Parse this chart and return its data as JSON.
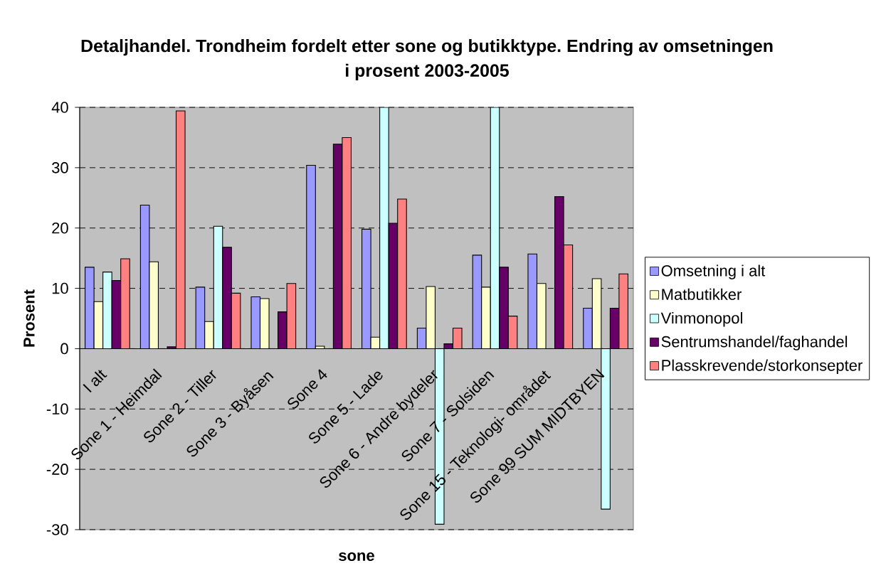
{
  "chart_data": {
    "type": "bar",
    "title": "Detaljhandel. Trondheim fordelt etter sone og butikktype. Endring av omsetningen i prosent 2003-2005",
    "xlabel": "sone",
    "ylabel": "Prosent",
    "categories": [
      "I alt",
      "Sone 1 - Heimdal",
      "Sone 2 - Tiller",
      "Sone 3 - Byåsen",
      "Sone 4",
      "Sone 5 - Lade",
      "Sone 6 - Andre bydeler",
      "Sone 7 - Solsiden",
      "Sone 15 - Teknologi- området",
      "Sone 99 SUM MIDTBYEN"
    ],
    "series": [
      {
        "name": "Omsetning i alt",
        "color": "#9999ff",
        "values": [
          13.5,
          23.8,
          10.2,
          8.6,
          30.4,
          19.8,
          3.4,
          15.5,
          15.7,
          6.7
        ]
      },
      {
        "name": "Matbutikker",
        "color": "#ffffcc",
        "values": [
          7.8,
          14.4,
          4.5,
          8.3,
          0.4,
          1.9,
          10.3,
          10.2,
          10.8,
          11.6
        ]
      },
      {
        "name": "Vinmonopol",
        "color": "#ccffff",
        "values": [
          12.7,
          null,
          20.3,
          null,
          null,
          40,
          -29.1,
          40,
          null,
          -26.6
        ]
      },
      {
        "name": "Sentrumshandel/faghandel",
        "color": "#660066",
        "values": [
          11.3,
          0.3,
          16.8,
          6.1,
          33.9,
          20.8,
          0.8,
          13.5,
          25.2,
          6.7
        ]
      },
      {
        "name": "Plasskrevende/storkonsepter",
        "color": "#ff8080",
        "values": [
          14.9,
          39.4,
          9.2,
          10.8,
          35.0,
          24.8,
          3.4,
          5.4,
          17.2,
          12.4
        ]
      }
    ],
    "ylim": [
      -30,
      40
    ],
    "yticks": [
      -30,
      -20,
      -10,
      0,
      10,
      20,
      30,
      40
    ],
    "grid": "y",
    "legend": "right",
    "line_style": "dashed"
  }
}
